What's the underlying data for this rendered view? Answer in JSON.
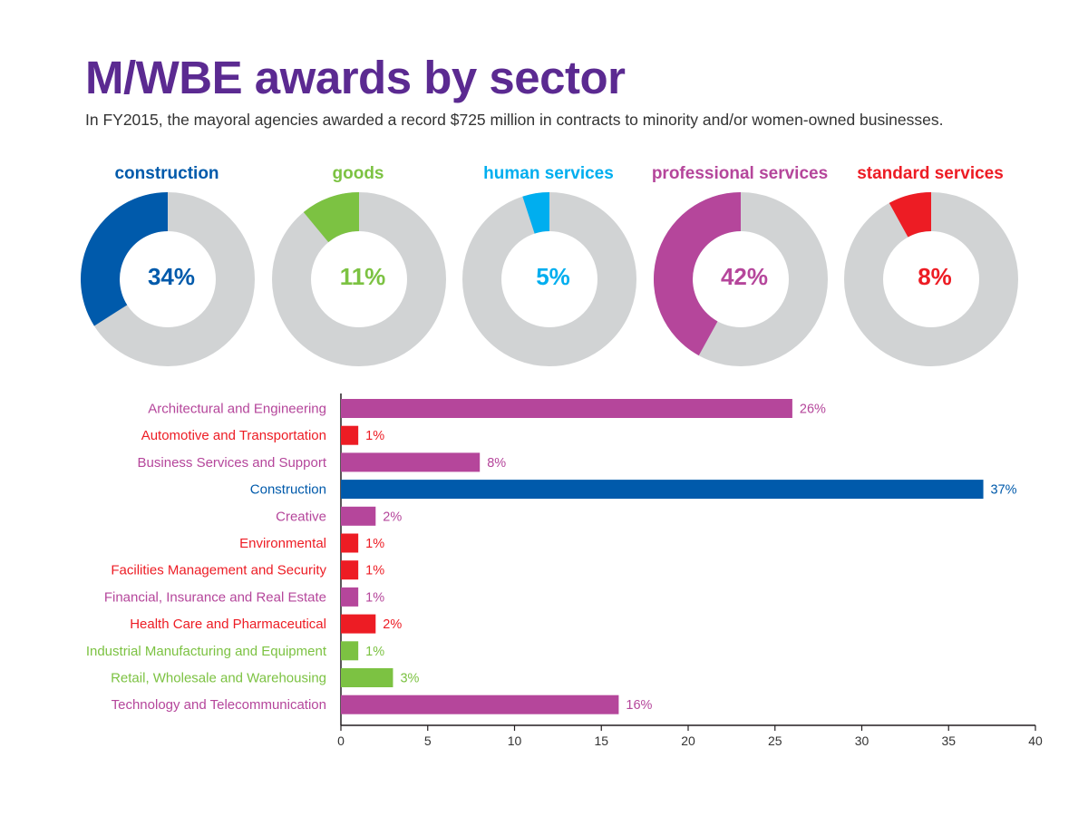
{
  "title": "M/WBE awards by sector",
  "subtitle": "In FY2015, the mayoral agencies awarded a record $725 million in contracts to minority and/or women-owned businesses.",
  "colors": {
    "construction": "#005aab",
    "goods": "#7cc242",
    "human_services": "#00aeef",
    "professional_services": "#b5469b",
    "standard_services": "#ed1c24",
    "remainder": "#d1d3d4",
    "axis": "#231f20"
  },
  "chart_data": [
    {
      "type": "pie",
      "style": "donut-row",
      "slices": [
        {
          "label": "construction",
          "display": "34%",
          "value": 34,
          "color": "#005aab"
        },
        {
          "label": "goods",
          "display": "11%",
          "value": 11,
          "color": "#7cc242"
        },
        {
          "label": "human services",
          "display": "5%",
          "value": 5,
          "color": "#00aeef"
        },
        {
          "label": "professional services",
          "display": "42%",
          "value": 42,
          "color": "#b5469b"
        },
        {
          "label": "standard services",
          "display": "8%",
          "value": 8,
          "color": "#ed1c24"
        }
      ]
    },
    {
      "type": "bar",
      "orientation": "horizontal",
      "categories": [
        "Architectural and Engineering",
        "Automotive and Transportation",
        "Business Services and Support",
        "Construction",
        "Creative",
        "Environmental",
        "Facilities Management and Security",
        "Financial, Insurance and Real Estate",
        "Health Care and Pharmaceutical",
        "Industrial Manufacturing and Equipment",
        "Retail, Wholesale and Warehousing",
        "Technology and Telecommunication"
      ],
      "values": [
        26,
        1,
        8,
        37,
        2,
        1,
        1,
        1,
        2,
        1,
        3,
        16
      ],
      "value_labels": [
        "26%",
        "1%",
        "8%",
        "37%",
        "2%",
        "1%",
        "1%",
        "1%",
        "2%",
        "1%",
        "3%",
        "16%"
      ],
      "colors": [
        "#b5469b",
        "#ed1c24",
        "#b5469b",
        "#005aab",
        "#b5469b",
        "#ed1c24",
        "#ed1c24",
        "#b5469b",
        "#ed1c24",
        "#7cc242",
        "#7cc242",
        "#b5469b"
      ],
      "xlim": [
        0,
        40
      ],
      "xticks": [
        0,
        5,
        10,
        15,
        20,
        25,
        30,
        35,
        40
      ],
      "grid": false
    }
  ]
}
